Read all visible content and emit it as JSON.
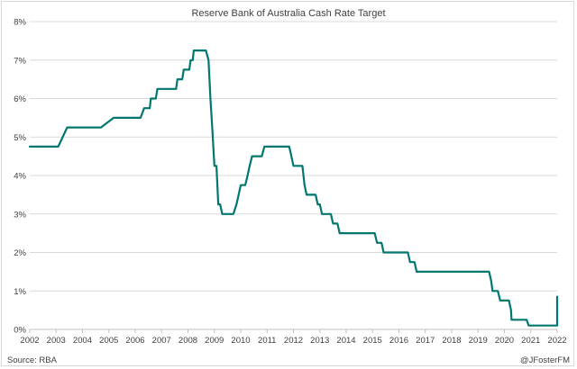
{
  "chart_data": {
    "type": "line",
    "title": "Reserve Bank of Australia Cash Rate Target",
    "xlabel": "",
    "ylabel": "",
    "xlim": [
      2002,
      2022
    ],
    "ylim": [
      0,
      8
    ],
    "x_ticks": [
      "2002",
      "2003",
      "2004",
      "2005",
      "2006",
      "2007",
      "2008",
      "2009",
      "2010",
      "2011",
      "2012",
      "2013",
      "2014",
      "2015",
      "2016",
      "2017",
      "2018",
      "2019",
      "2020",
      "2021",
      "2022"
    ],
    "y_ticks": [
      "0%",
      "1%",
      "2%",
      "3%",
      "4%",
      "5%",
      "6%",
      "7%",
      "8%"
    ],
    "grid": "horizontal",
    "legend": "none",
    "series": [
      {
        "color": "#00776f",
        "points": [
          [
            2002.0,
            4.75
          ],
          [
            2002.33,
            4.75
          ],
          [
            2002.42,
            4.75
          ],
          [
            2003.08,
            4.75
          ],
          [
            2003.42,
            5.25
          ],
          [
            2003.75,
            5.25
          ],
          [
            2003.84,
            5.25
          ],
          [
            2004.7,
            5.25
          ],
          [
            2005.18,
            5.5
          ],
          [
            2005.6,
            5.5
          ],
          [
            2006.2,
            5.5
          ],
          [
            2006.34,
            5.75
          ],
          [
            2006.55,
            5.75
          ],
          [
            2006.59,
            6.0
          ],
          [
            2006.78,
            6.0
          ],
          [
            2006.84,
            6.25
          ],
          [
            2007.55,
            6.25
          ],
          [
            2007.6,
            6.5
          ],
          [
            2007.78,
            6.5
          ],
          [
            2007.84,
            6.75
          ],
          [
            2008.05,
            6.75
          ],
          [
            2008.1,
            7.0
          ],
          [
            2008.18,
            7.0
          ],
          [
            2008.22,
            7.25
          ],
          [
            2008.68,
            7.25
          ],
          [
            2008.78,
            7.0
          ],
          [
            2008.85,
            6.0
          ],
          [
            2008.92,
            5.25
          ],
          [
            2009.0,
            4.25
          ],
          [
            2009.08,
            4.25
          ],
          [
            2009.15,
            3.25
          ],
          [
            2009.22,
            3.25
          ],
          [
            2009.3,
            3.0
          ],
          [
            2009.72,
            3.0
          ],
          [
            2009.84,
            3.25
          ],
          [
            2009.92,
            3.5
          ],
          [
            2010.0,
            3.75
          ],
          [
            2010.17,
            3.75
          ],
          [
            2010.26,
            4.0
          ],
          [
            2010.34,
            4.25
          ],
          [
            2010.43,
            4.5
          ],
          [
            2010.8,
            4.5
          ],
          [
            2010.9,
            4.75
          ],
          [
            2011.84,
            4.75
          ],
          [
            2011.92,
            4.5
          ],
          [
            2012.0,
            4.25
          ],
          [
            2012.34,
            4.25
          ],
          [
            2012.42,
            3.75
          ],
          [
            2012.5,
            3.5
          ],
          [
            2012.84,
            3.5
          ],
          [
            2012.92,
            3.25
          ],
          [
            2013.0,
            3.25
          ],
          [
            2013.08,
            3.0
          ],
          [
            2013.42,
            3.0
          ],
          [
            2013.5,
            2.75
          ],
          [
            2013.67,
            2.75
          ],
          [
            2013.75,
            2.5
          ],
          [
            2015.08,
            2.5
          ],
          [
            2015.17,
            2.25
          ],
          [
            2015.34,
            2.25
          ],
          [
            2015.42,
            2.0
          ],
          [
            2016.34,
            2.0
          ],
          [
            2016.42,
            1.75
          ],
          [
            2016.59,
            1.75
          ],
          [
            2016.67,
            1.5
          ],
          [
            2019.42,
            1.5
          ],
          [
            2019.5,
            1.25
          ],
          [
            2019.55,
            1.0
          ],
          [
            2019.75,
            1.0
          ],
          [
            2019.84,
            0.75
          ],
          [
            2020.17,
            0.75
          ],
          [
            2020.25,
            0.5
          ],
          [
            2020.27,
            0.25
          ],
          [
            2020.84,
            0.25
          ],
          [
            2020.92,
            0.1
          ],
          [
            2022.33,
            0.1
          ],
          [
            2022.42,
            0.35
          ],
          [
            2022.5,
            0.5
          ],
          [
            2022.58,
            0.85
          ]
        ]
      }
    ],
    "source_note": "Source: RBA",
    "credit": "@JFosterFM"
  }
}
